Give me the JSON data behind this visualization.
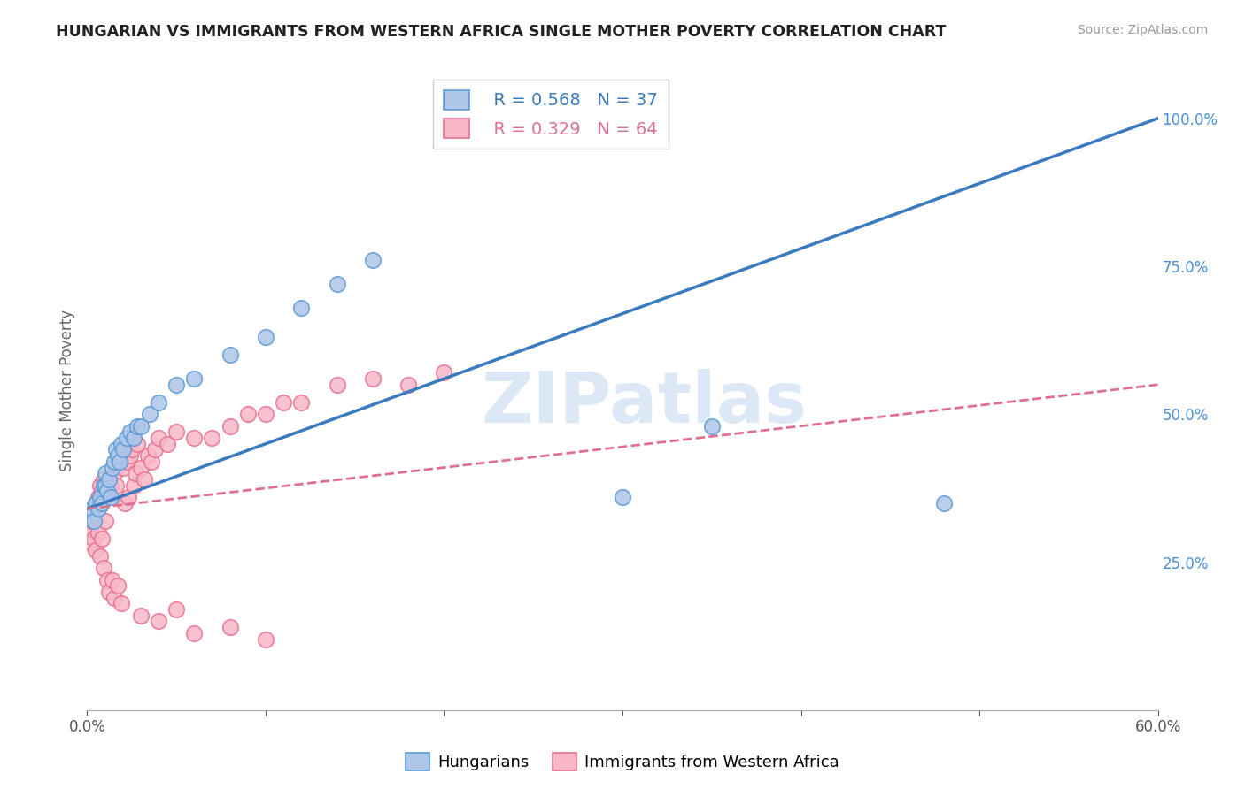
{
  "title": "HUNGARIAN VS IMMIGRANTS FROM WESTERN AFRICA SINGLE MOTHER POVERTY CORRELATION CHART",
  "source": "Source: ZipAtlas.com",
  "ylabel": "Single Mother Poverty",
  "xlim": [
    0.0,
    0.6
  ],
  "ylim": [
    0.0,
    1.08
  ],
  "x_ticks": [
    0.0,
    0.1,
    0.2,
    0.3,
    0.4,
    0.5,
    0.6
  ],
  "x_tick_labels": [
    "0.0%",
    "",
    "",
    "",
    "",
    "",
    "60.0%"
  ],
  "y_ticks_right": [
    0.25,
    0.5,
    0.75,
    1.0
  ],
  "y_tick_labels_right": [
    "25.0%",
    "50.0%",
    "75.0%",
    "100.0%"
  ],
  "legend_r1": "R = 0.568",
  "legend_n1": "N = 37",
  "legend_r2": "R = 0.329",
  "legend_n2": "N = 64",
  "blue_scatter_color": "#aec6e8",
  "blue_edge_color": "#5b9bd5",
  "pink_scatter_color": "#f9b8c8",
  "pink_edge_color": "#e87090",
  "blue_line_color": "#3a7abf",
  "pink_line_color": "#e07090",
  "watermark_color": "#dce8f5",
  "watermark_text": "ZIPatlas",
  "hungarian_x": [
    0.002,
    0.003,
    0.004,
    0.005,
    0.006,
    0.007,
    0.008,
    0.009,
    0.01,
    0.01,
    0.011,
    0.012,
    0.013,
    0.014,
    0.015,
    0.016,
    0.017,
    0.018,
    0.019,
    0.02,
    0.022,
    0.024,
    0.026,
    0.028,
    0.03,
    0.035,
    0.04,
    0.05,
    0.06,
    0.08,
    0.1,
    0.12,
    0.14,
    0.16,
    0.3,
    0.35,
    0.48
  ],
  "hungarian_y": [
    0.33,
    0.34,
    0.32,
    0.35,
    0.34,
    0.36,
    0.35,
    0.38,
    0.38,
    0.4,
    0.37,
    0.39,
    0.36,
    0.41,
    0.42,
    0.44,
    0.43,
    0.42,
    0.45,
    0.44,
    0.46,
    0.47,
    0.46,
    0.48,
    0.48,
    0.5,
    0.52,
    0.55,
    0.56,
    0.6,
    0.63,
    0.68,
    0.72,
    0.76,
    0.36,
    0.48,
    0.35
  ],
  "western_africa_x": [
    0.001,
    0.002,
    0.003,
    0.003,
    0.004,
    0.004,
    0.005,
    0.005,
    0.006,
    0.006,
    0.007,
    0.007,
    0.008,
    0.008,
    0.009,
    0.009,
    0.01,
    0.01,
    0.011,
    0.011,
    0.012,
    0.012,
    0.013,
    0.014,
    0.015,
    0.015,
    0.016,
    0.017,
    0.018,
    0.019,
    0.02,
    0.021,
    0.022,
    0.023,
    0.024,
    0.025,
    0.026,
    0.027,
    0.028,
    0.03,
    0.032,
    0.034,
    0.036,
    0.038,
    0.04,
    0.045,
    0.05,
    0.06,
    0.07,
    0.08,
    0.09,
    0.1,
    0.11,
    0.12,
    0.14,
    0.16,
    0.18,
    0.2,
    0.03,
    0.04,
    0.05,
    0.06,
    0.08,
    0.1
  ],
  "western_africa_y": [
    0.33,
    0.3,
    0.32,
    0.28,
    0.34,
    0.29,
    0.35,
    0.27,
    0.36,
    0.3,
    0.38,
    0.26,
    0.37,
    0.29,
    0.39,
    0.24,
    0.36,
    0.32,
    0.38,
    0.22,
    0.37,
    0.2,
    0.38,
    0.22,
    0.4,
    0.19,
    0.38,
    0.21,
    0.42,
    0.18,
    0.41,
    0.35,
    0.42,
    0.36,
    0.43,
    0.44,
    0.38,
    0.4,
    0.45,
    0.41,
    0.39,
    0.43,
    0.42,
    0.44,
    0.46,
    0.45,
    0.47,
    0.46,
    0.46,
    0.48,
    0.5,
    0.5,
    0.52,
    0.52,
    0.55,
    0.56,
    0.55,
    0.57,
    0.16,
    0.15,
    0.17,
    0.13,
    0.14,
    0.12
  ],
  "blue_line_x0": 0.0,
  "blue_line_y0": 0.34,
  "blue_line_x1": 0.6,
  "blue_line_y1": 1.0,
  "pink_line_x0": 0.0,
  "pink_line_y0": 0.34,
  "pink_line_x1": 0.6,
  "pink_line_y1": 0.55
}
